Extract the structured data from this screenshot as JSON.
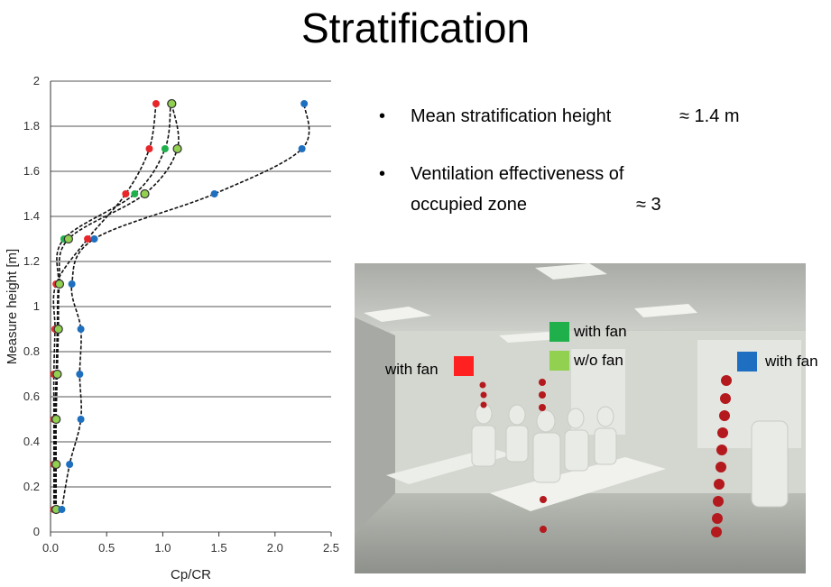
{
  "title": "Stratification",
  "bullets": [
    {
      "text": "Mean stratification height",
      "value": "≈ 1.4 m"
    },
    {
      "text": "Ventilation effectiveness of",
      "text2": "occupied zone",
      "value": "≈ 3"
    }
  ],
  "legend": {
    "red_label": "with fan",
    "green_label": "with fan",
    "lightgreen_label": "w/o fan",
    "blue_label": "with fan"
  },
  "colors": {
    "red": "#e8262a",
    "green": "#1fb04b",
    "lightgreen": "#92d050",
    "blue": "#1f6fbf"
  },
  "chart_data": {
    "type": "scatter",
    "xlabel": "Cp/CR",
    "ylabel": "Measure height [m]",
    "xlim": [
      0,
      2.5
    ],
    "ylim": [
      0,
      2
    ],
    "xticks": [
      "0.0",
      "0.5",
      "1.0",
      "1.5",
      "2.0",
      "2.5"
    ],
    "yticks": [
      "0",
      "0.2",
      "0.4",
      "0.6",
      "0.8",
      "1",
      "1.2",
      "1.4",
      "1.6",
      "1.8",
      "2"
    ],
    "grid": "horizontal",
    "series": [
      {
        "color": "red",
        "points": [
          [
            0.03,
            0.1
          ],
          [
            0.03,
            0.3
          ],
          [
            0.03,
            0.5
          ],
          [
            0.03,
            0.7
          ],
          [
            0.04,
            0.9
          ],
          [
            0.05,
            1.1
          ],
          [
            0.33,
            1.3
          ],
          [
            0.67,
            1.5
          ],
          [
            0.88,
            1.7
          ],
          [
            0.94,
            1.9
          ]
        ]
      },
      {
        "color": "green",
        "points": [
          [
            0.04,
            0.1
          ],
          [
            0.04,
            0.3
          ],
          [
            0.04,
            0.5
          ],
          [
            0.05,
            0.7
          ],
          [
            0.06,
            0.9
          ],
          [
            0.07,
            1.1
          ],
          [
            0.12,
            1.3
          ],
          [
            0.75,
            1.5
          ],
          [
            1.02,
            1.7
          ],
          [
            1.07,
            1.9
          ]
        ]
      },
      {
        "color": "lightgreen",
        "points": [
          [
            0.05,
            0.1
          ],
          [
            0.05,
            0.3
          ],
          [
            0.05,
            0.5
          ],
          [
            0.06,
            0.7
          ],
          [
            0.07,
            0.9
          ],
          [
            0.08,
            1.1
          ],
          [
            0.16,
            1.3
          ],
          [
            0.84,
            1.5
          ],
          [
            1.13,
            1.7
          ],
          [
            1.08,
            1.9
          ]
        ]
      },
      {
        "color": "blue",
        "points": [
          [
            0.1,
            0.1
          ],
          [
            0.17,
            0.3
          ],
          [
            0.27,
            0.5
          ],
          [
            0.26,
            0.7
          ],
          [
            0.27,
            0.9
          ],
          [
            0.19,
            1.1
          ],
          [
            0.39,
            1.3
          ],
          [
            1.46,
            1.5
          ],
          [
            2.24,
            1.7
          ],
          [
            2.26,
            1.9
          ]
        ]
      }
    ]
  }
}
